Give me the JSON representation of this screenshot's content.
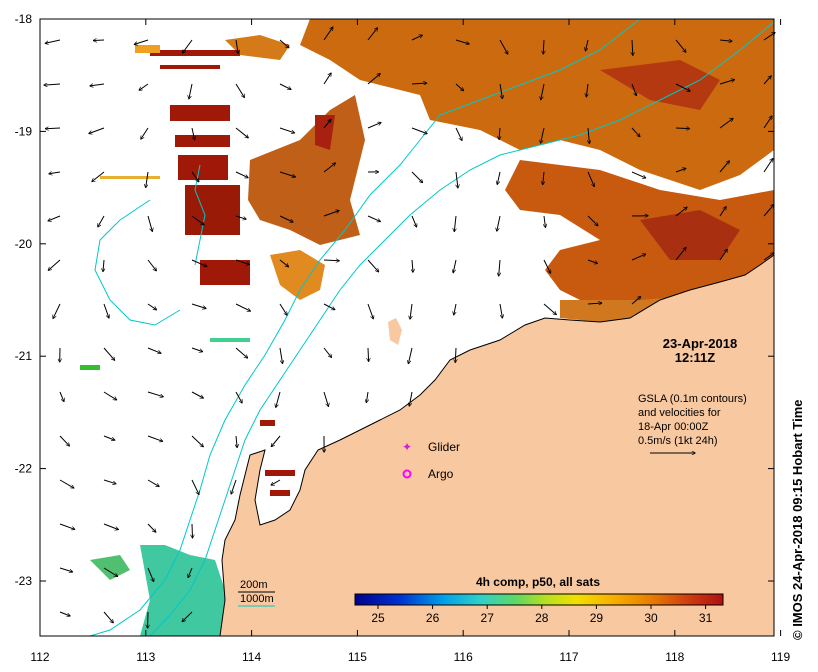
{
  "map": {
    "date": "23-Apr-2018",
    "time": "12:11Z",
    "x_ticks": [
      "112",
      "113",
      "114",
      "115",
      "116",
      "117",
      "118",
      "119"
    ],
    "y_ticks": [
      "-18",
      "-19",
      "-20",
      "-21",
      "-22",
      "-23"
    ],
    "legend": {
      "glider": "Glider",
      "argo": "Argo",
      "glider_color": "#d020d0",
      "argo_color": "#ff00ff"
    },
    "gsla": {
      "line1": "GSLA (0.1m contours)",
      "line2": "and velocities for",
      "line3": "18-Apr 00:00Z",
      "line4": "0.5m/s (1kt 24h)"
    },
    "bathy": {
      "line200": "200m",
      "line1000": "1000m",
      "color": "#00c8c8"
    },
    "colorbar": {
      "title": "4h comp, p50, all sats",
      "ticks": [
        "25",
        "26",
        "27",
        "28",
        "29",
        "30",
        "31"
      ]
    },
    "credit": "© IMOS 24-Apr-2018 09:15 Hobart Time",
    "colors": {
      "land": "#f8c8a0",
      "sst_warm": "#cc6a10",
      "sst_hot": "#a01808"
    }
  }
}
